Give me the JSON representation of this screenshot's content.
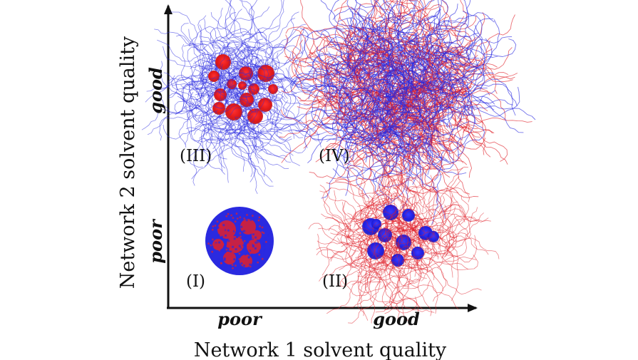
{
  "x_axis": {
    "title": "Network 1 solvent quality",
    "ticks": [
      "poor",
      "good"
    ]
  },
  "y_axis": {
    "title": "Network 2 solvent quality",
    "ticks": [
      "poor",
      "good"
    ]
  },
  "quadrants": [
    {
      "id": "I",
      "label": "(I)",
      "state": "both collapsed",
      "colors": [
        "#e0202a",
        "#2a2ae0"
      ]
    },
    {
      "id": "II",
      "label": "(II)",
      "state": "network 2 collapsed, network 1 swollen",
      "colors": [
        "#e0202a",
        "#2a2ae0"
      ]
    },
    {
      "id": "III",
      "label": "(III)",
      "state": "network 1 collapsed, network 2 swollen",
      "colors": [
        "#2a2ae0",
        "#e0202a"
      ]
    },
    {
      "id": "IV",
      "label": "(IV)",
      "state": "both swollen",
      "colors": [
        "#e0202a",
        "#2a2ae0"
      ]
    }
  ],
  "colors": {
    "network1": "#e0202a",
    "network2": "#2a2ae0",
    "axis": "#111111"
  }
}
